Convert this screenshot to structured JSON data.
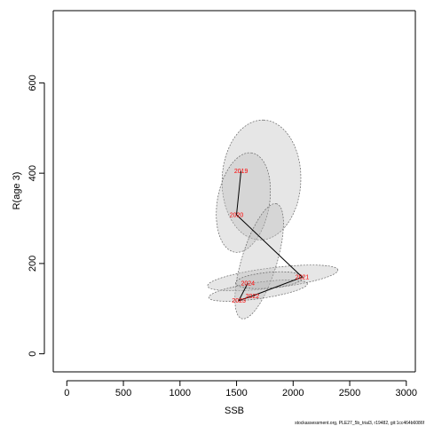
{
  "chart_data": {
    "type": "scatter",
    "title": "",
    "xlabel": "SSB",
    "ylabel": "R(age 3)",
    "xlim": [
      -120,
      3080
    ],
    "ylim": [
      -40,
      760
    ],
    "xticks": [
      0,
      500,
      1000,
      1500,
      2000,
      2500,
      3000
    ],
    "yticks": [
      0,
      200,
      400,
      600
    ],
    "grid": false,
    "legend": "none",
    "colors": {
      "points": "#ff0000",
      "trajectory": "#000000",
      "ellipse_fill": "#bdbdbd",
      "ellipse_stroke": "#666666"
    },
    "points": [
      {
        "label": "2019",
        "x": 1540,
        "y": 405
      },
      {
        "label": "2020",
        "x": 1500,
        "y": 308
      },
      {
        "label": "2021",
        "x": 2080,
        "y": 170
      },
      {
        "label": "2022",
        "x": 1640,
        "y": 128
      },
      {
        "label": "2023",
        "x": 1520,
        "y": 118
      },
      {
        "label": "2024",
        "x": 1600,
        "y": 157
      }
    ],
    "ellipses": [
      {
        "cx": 1720,
        "cy": 385,
        "rx": 530,
        "ry": 348,
        "angle": 88
      },
      {
        "cx": 1560,
        "cy": 335,
        "rx": 445,
        "ry": 230,
        "angle": 80
      },
      {
        "cx": 1820,
        "cy": 168,
        "rx": 580,
        "ry": 90,
        "angle": 7
      },
      {
        "cx": 1700,
        "cy": 205,
        "rx": 530,
        "ry": 155,
        "angle": 73
      },
      {
        "cx": 1690,
        "cy": 140,
        "rx": 440,
        "ry": 72,
        "angle": 8
      },
      {
        "cx": 1790,
        "cy": 163,
        "rx": 300,
        "ry": 70,
        "angle": 5
      }
    ]
  },
  "footer_text": "stockassessment.org, PLE27_5b_trial3, r19482, git:1cc464b6086f"
}
